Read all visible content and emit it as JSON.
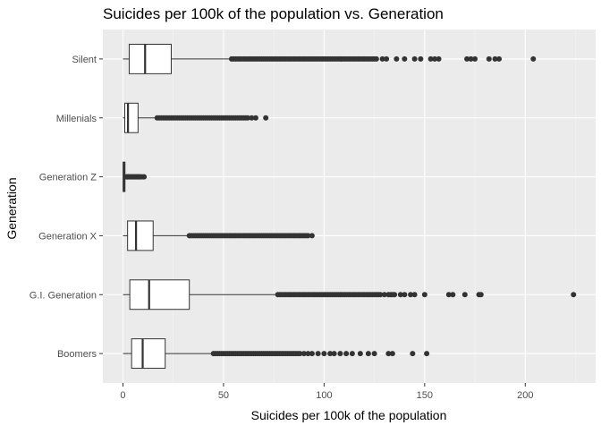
{
  "colors": {
    "panel_background": "#ebebeb",
    "grid_major": "#ffffff",
    "grid_minor": "#f5f5f5",
    "box_fill": "#ffffff",
    "box_stroke": "#333333",
    "point_fill": "#333333",
    "tick_text": "#4d4d4d"
  },
  "chart_data": {
    "type": "boxplot",
    "orientation": "horizontal",
    "title": "Suicides per 100k of the population vs. Generation",
    "xlabel": "Suicides per 100k of the population",
    "ylabel": "Generation",
    "xlim": [
      -10,
      235
    ],
    "x_ticks": [
      0,
      50,
      100,
      150,
      200
    ],
    "grid": true,
    "legend": "none",
    "categories": [
      "Silent",
      "Millenials",
      "Generation Z",
      "Generation X",
      "G.I. Generation",
      "Boomers"
    ],
    "boxes": [
      {
        "category": "Silent",
        "whisker_low": 0,
        "q1": 3.1,
        "median": 11,
        "q3": 24,
        "whisker_high": 54,
        "outliers": [
          54,
          55,
          56,
          57,
          58,
          59,
          60,
          61,
          62,
          63,
          64,
          65,
          66,
          67,
          68,
          69,
          70,
          71,
          72,
          73,
          74,
          75,
          76,
          77,
          78,
          79,
          80,
          81,
          82,
          83,
          84,
          85,
          86,
          87,
          88,
          89,
          90,
          91,
          92,
          93,
          94,
          95,
          96,
          97,
          98,
          99,
          100,
          101,
          102,
          103,
          104,
          105,
          106,
          107,
          108,
          109,
          110,
          111,
          112,
          113,
          114,
          115,
          116,
          117,
          118,
          119,
          120,
          121,
          122,
          123,
          124,
          125,
          126,
          129,
          131,
          136,
          140,
          145,
          148,
          153,
          155,
          157,
          171,
          173,
          175,
          182,
          185,
          187,
          204
        ]
      },
      {
        "category": "Millenials",
        "whisker_low": 0,
        "q1": 0.9,
        "median": 2.5,
        "q3": 7.5,
        "whisker_high": 17,
        "outliers": [
          17,
          18,
          19,
          20,
          21,
          22,
          23,
          24,
          25,
          26,
          27,
          28,
          29,
          30,
          31,
          32,
          33,
          34,
          35,
          36,
          37,
          38,
          39,
          40,
          41,
          42,
          43,
          44,
          45,
          46,
          47,
          48,
          49,
          50,
          51,
          52,
          53,
          54,
          55,
          56,
          57,
          58,
          59,
          60,
          61,
          62,
          64,
          66,
          71
        ]
      },
      {
        "category": "Generation Z",
        "whisker_low": 0,
        "q1": 0.1,
        "median": 0.4,
        "q3": 1.0,
        "whisker_high": 1.6,
        "outliers": [
          1.7,
          2.0,
          2.3,
          2.6,
          3.0,
          3.4,
          3.8,
          4.2,
          4.6,
          5.0,
          5.4,
          5.8,
          6.2,
          6.6,
          7.0,
          7.5,
          8.0,
          8.5,
          9.0,
          10.0,
          10.5
        ]
      },
      {
        "category": "Generation X",
        "whisker_low": 0,
        "q1": 2.3,
        "median": 6.5,
        "q3": 15,
        "whisker_high": 33,
        "outliers": [
          33,
          34,
          35,
          36,
          37,
          38,
          39,
          40,
          41,
          42,
          43,
          44,
          45,
          46,
          47,
          48,
          49,
          50,
          51,
          52,
          53,
          54,
          55,
          56,
          57,
          58,
          59,
          60,
          61,
          62,
          63,
          64,
          65,
          66,
          67,
          68,
          69,
          70,
          71,
          72,
          73,
          74,
          75,
          76,
          77,
          78,
          79,
          80,
          81,
          82,
          83,
          84,
          85,
          86,
          87,
          88,
          89,
          90,
          91,
          92,
          94
        ]
      },
      {
        "category": "G.I. Generation",
        "whisker_low": 0,
        "q1": 3.4,
        "median": 13,
        "q3": 33,
        "whisker_high": 77,
        "outliers": [
          77,
          78,
          79,
          80,
          81,
          82,
          83,
          84,
          85,
          86,
          87,
          88,
          89,
          90,
          91,
          92,
          93,
          94,
          95,
          96,
          97,
          98,
          99,
          100,
          101,
          102,
          103,
          104,
          105,
          106,
          107,
          108,
          109,
          110,
          111,
          112,
          113,
          114,
          115,
          116,
          117,
          118,
          119,
          120,
          121,
          122,
          123,
          124,
          125,
          126,
          127,
          128,
          130,
          132,
          133,
          134,
          135,
          138,
          140,
          143,
          145,
          150,
          162,
          164,
          170,
          177,
          178,
          224
        ]
      },
      {
        "category": "Boomers",
        "whisker_low": 0,
        "q1": 4.3,
        "median": 9.8,
        "q3": 21,
        "whisker_high": 45,
        "outliers": [
          45,
          46,
          47,
          48,
          49,
          50,
          51,
          52,
          53,
          54,
          55,
          56,
          57,
          58,
          59,
          60,
          61,
          62,
          63,
          64,
          65,
          66,
          67,
          68,
          69,
          70,
          71,
          72,
          73,
          74,
          75,
          76,
          77,
          78,
          79,
          80,
          81,
          82,
          83,
          84,
          85,
          86,
          87,
          88,
          90,
          92,
          94,
          97,
          100,
          103,
          105,
          108,
          111,
          114,
          118,
          122,
          125,
          132,
          134,
          144,
          151
        ]
      }
    ]
  }
}
